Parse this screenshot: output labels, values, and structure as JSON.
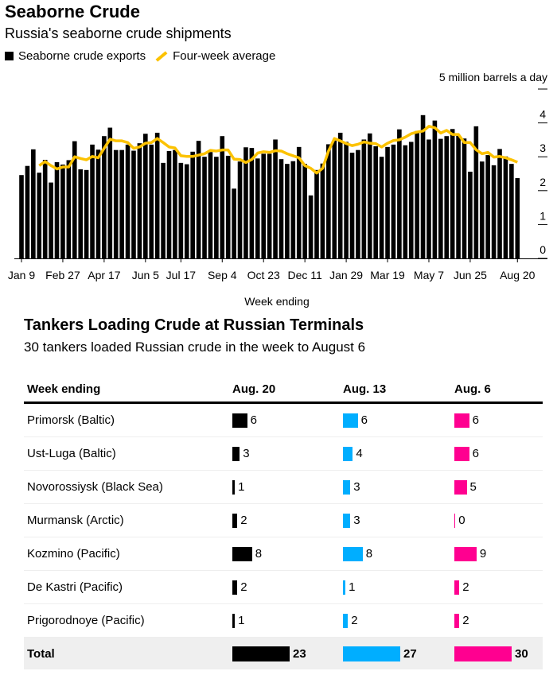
{
  "header": {
    "title": "Seaborne Crude",
    "subtitle": "Russia's seaborne crude shipments"
  },
  "legend": {
    "bars": "Seaborne crude exports",
    "line": "Four-week average"
  },
  "colors": {
    "bars": "#000000",
    "line": "#fcc200",
    "aug20": "#000000",
    "aug13": "#00aeff",
    "aug6": "#ff0090"
  },
  "chart_data": {
    "type": "bar",
    "xlabel": "Week ending",
    "unit_label": "5 million barrels a day",
    "ylim": [
      0,
      5
    ],
    "yticks": [
      "0",
      "1",
      "2",
      "3",
      "4"
    ],
    "xtick_labels": [
      {
        "i": 0,
        "label": "Jan 9"
      },
      {
        "i": 7,
        "label": "Feb 27"
      },
      {
        "i": 14,
        "label": "Apr 17"
      },
      {
        "i": 21,
        "label": "Jun 5"
      },
      {
        "i": 27,
        "label": "Jul 17"
      },
      {
        "i": 34,
        "label": "Sep 4"
      },
      {
        "i": 41,
        "label": "Oct 23"
      },
      {
        "i": 48,
        "label": "Dec 11"
      },
      {
        "i": 55,
        "label": "Jan 29"
      },
      {
        "i": 62,
        "label": "Mar 19"
      },
      {
        "i": 69,
        "label": "May 7"
      },
      {
        "i": 76,
        "label": "Jun 25"
      },
      {
        "i": 84,
        "label": "Aug 20"
      }
    ],
    "series": [
      {
        "name": "Seaborne crude exports",
        "type": "bar",
        "values": [
          2.46,
          2.73,
          3.22,
          2.53,
          2.91,
          2.24,
          2.84,
          2.77,
          2.9,
          3.46,
          2.63,
          2.61,
          3.36,
          3.21,
          3.61,
          3.86,
          3.2,
          3.2,
          3.36,
          3.18,
          3.4,
          3.68,
          3.36,
          3.71,
          2.82,
          3.17,
          3.2,
          2.82,
          2.78,
          3.15,
          3.47,
          3.0,
          3.14,
          3.0,
          3.61,
          3.03,
          2.06,
          2.86,
          3.28,
          3.26,
          2.95,
          3.09,
          3.09,
          3.51,
          2.93,
          2.79,
          2.87,
          3.29,
          2.79,
          1.86,
          2.61,
          2.8,
          3.37,
          3.48,
          3.71,
          3.44,
          3.12,
          3.2,
          3.51,
          3.69,
          3.31,
          3.0,
          3.29,
          3.36,
          3.81,
          3.34,
          3.44,
          3.76,
          4.23,
          3.51,
          4.07,
          3.53,
          3.61,
          3.82,
          3.62,
          3.54,
          2.56,
          3.9,
          2.86,
          3.05,
          2.75,
          3.23,
          3.01,
          2.79,
          2.37
        ]
      },
      {
        "name": "Four-week average",
        "type": "line",
        "start_index": 3,
        "values": [
          2.74,
          2.86,
          2.74,
          2.64,
          2.7,
          2.7,
          3.0,
          2.95,
          2.91,
          3.01,
          2.97,
          3.25,
          3.52,
          3.47,
          3.47,
          3.42,
          3.25,
          3.29,
          3.4,
          3.42,
          3.54,
          3.42,
          3.29,
          3.26,
          3.03,
          3.01,
          3.01,
          3.05,
          3.09,
          3.19,
          3.17,
          3.2,
          3.2,
          2.93,
          2.92,
          2.83,
          2.92,
          3.11,
          3.15,
          3.13,
          3.18,
          3.17,
          3.09,
          3.03,
          2.97,
          2.74,
          2.66,
          2.52,
          2.66,
          3.17,
          3.54,
          3.47,
          3.39,
          3.33,
          3.37,
          3.44,
          3.4,
          3.39,
          3.29,
          3.4,
          3.48,
          3.5,
          3.58,
          3.68,
          3.73,
          3.76,
          3.9,
          3.86,
          3.7,
          3.78,
          3.66,
          3.66,
          3.42,
          3.42,
          3.21,
          3.09,
          3.13,
          2.99,
          3.01,
          2.97,
          2.91,
          2.84
        ]
      }
    ]
  },
  "table": {
    "title": "Tankers Loading Crude at Russian Terminals",
    "subtitle": "30 tankers loaded Russian crude in the week to August 6",
    "headers": [
      "Week ending",
      "Aug. 20",
      "Aug. 13",
      "Aug. 6"
    ],
    "rows": [
      {
        "label": "Primorsk (Baltic)",
        "values": [
          6,
          6,
          6
        ]
      },
      {
        "label": "Ust-Luga (Baltic)",
        "values": [
          3,
          4,
          6
        ]
      },
      {
        "label": "Novorossiysk (Black Sea)",
        "values": [
          1,
          3,
          5
        ]
      },
      {
        "label": "Murmansk (Arctic)",
        "values": [
          2,
          3,
          0
        ]
      },
      {
        "label": "Kozmino (Pacific)",
        "values": [
          8,
          8,
          9
        ]
      },
      {
        "label": "De Kastri (Pacific)",
        "values": [
          2,
          1,
          2
        ]
      },
      {
        "label": "Prigorodnoye (Pacific)",
        "values": [
          1,
          2,
          2
        ]
      }
    ],
    "total": {
      "label": "Total",
      "values": [
        23,
        27,
        30
      ]
    }
  }
}
